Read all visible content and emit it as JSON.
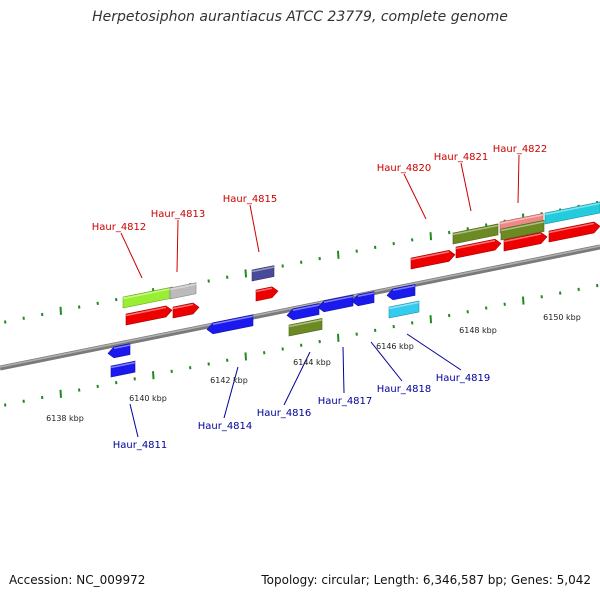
{
  "title": "Herpetosiphon aurantiacus ATCC 23779, complete genome",
  "footer": {
    "accession": "Accession: NC_009972",
    "summary": "Topology: circular; Length: 6,346,587 bp; Genes: 5,042"
  },
  "colors": {
    "forward_label": "#cc0000",
    "reverse_label": "#000099",
    "red": "#ee0000",
    "blue": "#1a1aee",
    "olive": "#6b8a22",
    "lime": "#99ee33",
    "grey": "#bbbbbb",
    "pink": "#ee8888",
    "cyan": "#22ccdd",
    "slate": "#4a4a99",
    "sky": "#33ccee"
  },
  "kbp_ticks": [
    {
      "label": "6138 kbp"
    },
    {
      "label": "6140 kbp"
    },
    {
      "label": "6142 kbp"
    },
    {
      "label": "6144 kbp"
    },
    {
      "label": "6146 kbp"
    },
    {
      "label": "6148 kbp"
    },
    {
      "label": "6150 kbp"
    }
  ],
  "gene_labels": {
    "forward": [
      "Haur_4812",
      "Haur_4813",
      "Haur_4815",
      "Haur_4820",
      "Haur_4821",
      "Haur_4822"
    ],
    "reverse": [
      "Haur_4811",
      "Haur_4814",
      "Haur_4816",
      "Haur_4817",
      "Haur_4818",
      "Haur_4819"
    ]
  }
}
